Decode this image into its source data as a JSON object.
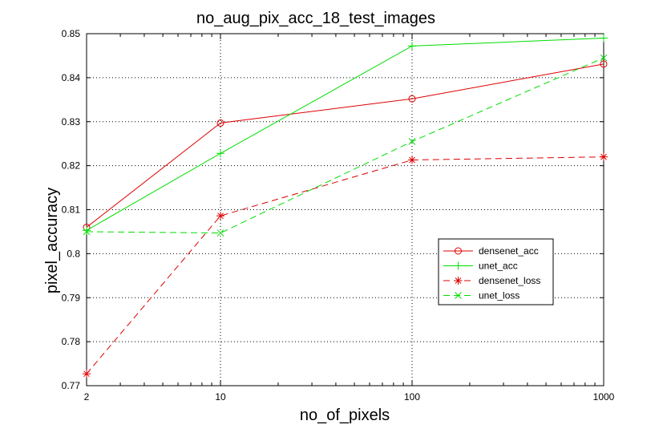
{
  "chart_data": {
    "type": "line",
    "title": "no_aug_pix_acc_18_test_images",
    "xlabel": "no_of_pixels",
    "ylabel": "pixel_accuracy",
    "x": [
      2,
      10,
      100,
      1000
    ],
    "x_tick_labels": [
      "2",
      "10",
      "100",
      "1000"
    ],
    "x_scale": "log",
    "xlim": [
      2,
      1000
    ],
    "ylim": [
      0.77,
      0.85
    ],
    "y_ticks": [
      0.77,
      0.78,
      0.79,
      0.8,
      0.81,
      0.82,
      0.83,
      0.84,
      0.85
    ],
    "y_tick_labels": [
      "0.77",
      "0.78",
      "0.79",
      "0.8",
      "0.81",
      "0.82",
      "0.83",
      "0.84",
      "0.85"
    ],
    "grid": true,
    "legend_position": "lower-right",
    "series": [
      {
        "name": "densenet_acc",
        "values": [
          0.806,
          0.8297,
          0.8352,
          0.8431
        ],
        "color": "#dd0000",
        "dash": "solid",
        "marker": "circle"
      },
      {
        "name": "unet_acc",
        "values": [
          0.8053,
          0.8228,
          0.8472,
          0.849
        ],
        "color": "#00dd00",
        "dash": "solid",
        "marker": "plus"
      },
      {
        "name": "densenet_loss",
        "values": [
          0.7727,
          0.8086,
          0.8213,
          0.822
        ],
        "color": "#dd0000",
        "dash": "dashed",
        "marker": "star"
      },
      {
        "name": "unet_loss",
        "values": [
          0.805,
          0.8047,
          0.8255,
          0.8445
        ],
        "color": "#00dd00",
        "dash": "dashed",
        "marker": "x"
      }
    ]
  }
}
